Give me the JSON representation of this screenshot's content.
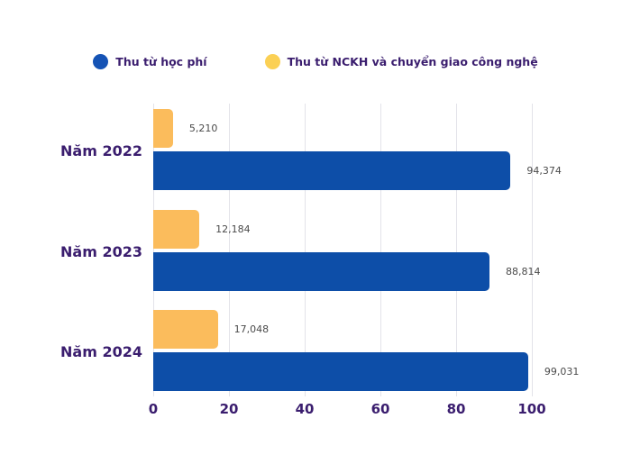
{
  "chart_data": {
    "type": "bar",
    "orientation": "horizontal",
    "title": "",
    "categories": [
      "Năm 2022",
      "Năm 2023",
      "Năm 2024"
    ],
    "series": [
      {
        "name": "Thu từ học phí",
        "color": "#0D4EA8",
        "legend_dot_color": "#1553B5",
        "values": [
          94.374,
          88.814,
          99.031
        ],
        "value_labels": [
          "94,374",
          "88,814",
          "99,031"
        ]
      },
      {
        "name": "Thu từ NCKH và chuyển giao công nghệ",
        "color": "#FBBC5C",
        "legend_dot_color": "#FBD054",
        "values": [
          5.21,
          12.184,
          17.048
        ],
        "value_labels": [
          "5,210",
          "12,184",
          "17,048"
        ]
      }
    ],
    "xlim": [
      0,
      100
    ],
    "xticks": [
      "0",
      "20",
      "40",
      "60",
      "80",
      "100"
    ],
    "grid": true,
    "legend_position": "top",
    "colors": {
      "background": "#FFFFFF",
      "grid": "#E3E3E9",
      "category_text": "#3A1D6E",
      "axis_text": "#3A1D6E",
      "value_text": "#4A4A4A",
      "legend_text": "#3A1D6E"
    }
  }
}
